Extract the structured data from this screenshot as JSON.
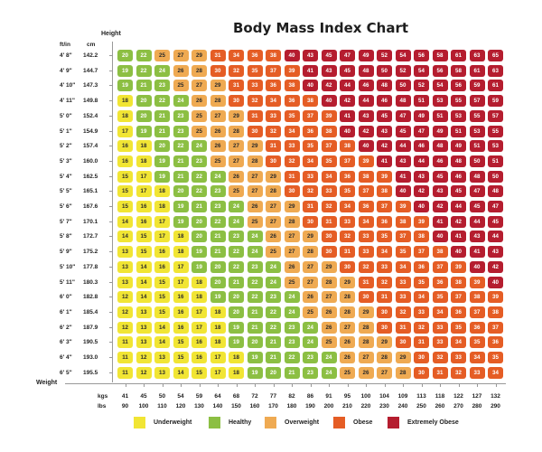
{
  "chart_data": {
    "type": "heatmap",
    "title": "Body Mass Index Chart",
    "ylabel": "Height",
    "xlabel": "Weight",
    "y_units": [
      "ft/in",
      "cm"
    ],
    "x_units": [
      "kgs",
      "lbs"
    ],
    "heights_ftin": [
      "4' 8\"",
      "4' 9\"",
      "4' 10\"",
      "4' 11\"",
      "5' 0\"",
      "5' 1\"",
      "5' 2\"",
      "5' 3\"",
      "5' 4\"",
      "5' 5\"",
      "5' 6\"",
      "5' 7\"",
      "5' 8\"",
      "5' 9\"",
      "5' 10\"",
      "5' 11\"",
      "6' 0\"",
      "6' 1\"",
      "6' 2\"",
      "6' 3\"",
      "6' 4\"",
      "6' 5\""
    ],
    "heights_cm": [
      "142.2",
      "144.7",
      "147.3",
      "149.8",
      "152.4",
      "154.9",
      "157.4",
      "160.0",
      "162.5",
      "165.1",
      "167.6",
      "170.1",
      "172.7",
      "175.2",
      "177.8",
      "180.3",
      "182.8",
      "185.4",
      "187.9",
      "190.5",
      "193.0",
      "195.5"
    ],
    "weights_kg": [
      "41",
      "45",
      "50",
      "54",
      "59",
      "64",
      "68",
      "72",
      "77",
      "82",
      "86",
      "91",
      "95",
      "100",
      "104",
      "109",
      "113",
      "118",
      "122",
      "127",
      "132"
    ],
    "weights_lbs": [
      "90",
      "100",
      "110",
      "120",
      "130",
      "140",
      "150",
      "160",
      "170",
      "180",
      "190",
      "200",
      "210",
      "220",
      "230",
      "240",
      "250",
      "260",
      "270",
      "280",
      "290"
    ],
    "values": [
      [
        20,
        22,
        25,
        27,
        29,
        31,
        34,
        36,
        38,
        40,
        43,
        45,
        47,
        49,
        52,
        54,
        56,
        58,
        61,
        63,
        65
      ],
      [
        19,
        22,
        24,
        26,
        28,
        30,
        32,
        35,
        37,
        39,
        41,
        43,
        45,
        48,
        50,
        52,
        54,
        56,
        58,
        61,
        63
      ],
      [
        19,
        21,
        23,
        25,
        27,
        29,
        31,
        33,
        36,
        38,
        40,
        42,
        44,
        46,
        48,
        50,
        52,
        54,
        56,
        59,
        61
      ],
      [
        18,
        20,
        22,
        24,
        26,
        28,
        30,
        32,
        34,
        36,
        38,
        40,
        42,
        44,
        46,
        48,
        51,
        53,
        55,
        57,
        59
      ],
      [
        18,
        20,
        21,
        23,
        25,
        27,
        29,
        31,
        33,
        35,
        37,
        39,
        41,
        43,
        45,
        47,
        49,
        51,
        53,
        55,
        57
      ],
      [
        17,
        19,
        21,
        23,
        25,
        26,
        28,
        30,
        32,
        34,
        36,
        38,
        40,
        42,
        43,
        45,
        47,
        49,
        51,
        53,
        55
      ],
      [
        16,
        18,
        20,
        22,
        24,
        26,
        27,
        29,
        31,
        33,
        35,
        37,
        38,
        40,
        42,
        44,
        46,
        48,
        49,
        51,
        53
      ],
      [
        16,
        18,
        19,
        21,
        23,
        25,
        27,
        28,
        30,
        32,
        34,
        35,
        37,
        39,
        41,
        43,
        44,
        46,
        48,
        50,
        51
      ],
      [
        15,
        17,
        19,
        21,
        22,
        24,
        26,
        27,
        29,
        31,
        33,
        34,
        36,
        38,
        39,
        41,
        43,
        45,
        46,
        48,
        50
      ],
      [
        15,
        17,
        18,
        20,
        22,
        23,
        25,
        27,
        28,
        30,
        32,
        33,
        35,
        37,
        38,
        40,
        42,
        43,
        45,
        47,
        48
      ],
      [
        15,
        16,
        18,
        19,
        21,
        23,
        24,
        26,
        27,
        29,
        31,
        32,
        34,
        36,
        37,
        39,
        40,
        42,
        44,
        45,
        47
      ],
      [
        14,
        16,
        17,
        19,
        20,
        22,
        24,
        25,
        27,
        28,
        30,
        31,
        33,
        34,
        36,
        38,
        39,
        41,
        42,
        44,
        45
      ],
      [
        14,
        15,
        17,
        18,
        20,
        21,
        23,
        24,
        26,
        27,
        29,
        30,
        32,
        33,
        35,
        37,
        38,
        40,
        41,
        43,
        44
      ],
      [
        13,
        15,
        16,
        18,
        19,
        21,
        22,
        24,
        25,
        27,
        28,
        30,
        31,
        33,
        34,
        35,
        37,
        38,
        40,
        41,
        43
      ],
      [
        13,
        14,
        16,
        17,
        19,
        20,
        22,
        23,
        24,
        26,
        27,
        29,
        30,
        32,
        33,
        34,
        36,
        37,
        39,
        40,
        42
      ],
      [
        13,
        14,
        15,
        17,
        18,
        20,
        21,
        22,
        24,
        25,
        27,
        28,
        29,
        31,
        32,
        33,
        35,
        36,
        38,
        39,
        40
      ],
      [
        12,
        14,
        15,
        16,
        18,
        19,
        20,
        22,
        23,
        24,
        26,
        27,
        28,
        30,
        31,
        33,
        34,
        35,
        37,
        38,
        39
      ],
      [
        12,
        13,
        15,
        16,
        17,
        18,
        20,
        21,
        22,
        24,
        25,
        26,
        28,
        29,
        30,
        32,
        33,
        34,
        36,
        37,
        38
      ],
      [
        12,
        13,
        14,
        16,
        17,
        18,
        19,
        21,
        22,
        23,
        24,
        26,
        27,
        28,
        30,
        31,
        32,
        33,
        35,
        36,
        37
      ],
      [
        11,
        13,
        14,
        15,
        16,
        18,
        19,
        20,
        21,
        23,
        24,
        25,
        26,
        28,
        29,
        30,
        31,
        33,
        34,
        35,
        36
      ],
      [
        11,
        12,
        13,
        15,
        16,
        17,
        18,
        19,
        21,
        22,
        23,
        24,
        26,
        27,
        28,
        29,
        30,
        32,
        33,
        34,
        35
      ],
      [
        11,
        12,
        13,
        14,
        15,
        17,
        18,
        19,
        20,
        21,
        23,
        24,
        25,
        26,
        27,
        28,
        30,
        31,
        32,
        33,
        34
      ]
    ],
    "categories": [
      {
        "key": "under",
        "label": "Underweight",
        "color": "#f1e534",
        "range": "<=18"
      },
      {
        "key": "healthy",
        "label": "Healthy",
        "color": "#8cbf43",
        "range": "19-24"
      },
      {
        "key": "over",
        "label": "Overweight",
        "color": "#efaa52",
        "range": "25-29"
      },
      {
        "key": "obese",
        "label": "Obese",
        "color": "#e55d25",
        "range": "30-39"
      },
      {
        "key": "extreme",
        "label": "Extremely Obese",
        "color": "#b51d2f",
        "range": ">=40"
      }
    ],
    "legend_position": "bottom"
  },
  "labels": {
    "title": "Body Mass Index Chart",
    "height": "Height",
    "weight": "Weight",
    "ftin": "ft/in",
    "cm": "cm",
    "kgs": "kgs",
    "lbs": "lbs"
  }
}
